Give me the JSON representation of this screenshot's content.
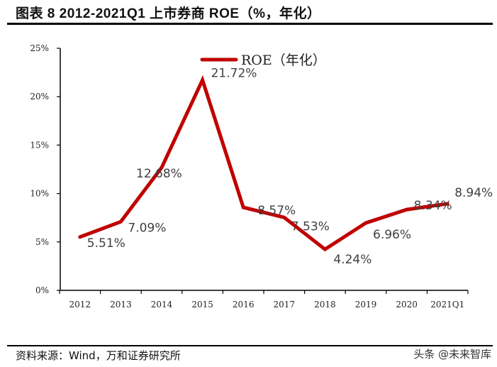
{
  "header": {
    "title": "图表 8   2012-2021Q1 上市券商 ROE（%，年化）"
  },
  "footer": {
    "source": "资料来源：Wind，万和证券研究所",
    "watermark": "头条 @未来智库"
  },
  "colors": {
    "line": "#C00000",
    "axis": "#000000",
    "label_text": "#404040"
  },
  "chart_data": {
    "type": "line",
    "title": "2012-2021Q1 上市券商 ROE（%，年化）",
    "xlabel": "",
    "ylabel": "",
    "ylim": [
      0,
      25
    ],
    "yticks": [
      "0%",
      "5%",
      "10%",
      "15%",
      "20%",
      "25%"
    ],
    "grid": false,
    "legend_position": "top-center",
    "categories": [
      "2012",
      "2013",
      "2014",
      "2015",
      "2016",
      "2017",
      "2018",
      "2019",
      "2020",
      "2021Q1"
    ],
    "series": [
      {
        "name": "ROE（年化）",
        "values": [
          5.51,
          7.09,
          12.68,
          21.72,
          8.57,
          7.53,
          4.24,
          6.96,
          8.34,
          8.94
        ],
        "labels": [
          "5.51%",
          "7.09%",
          "12.68%",
          "21.72%",
          "8.57%",
          "7.53%",
          "4.24%",
          "6.96%",
          "8.34%",
          "8.94%"
        ]
      }
    ]
  }
}
